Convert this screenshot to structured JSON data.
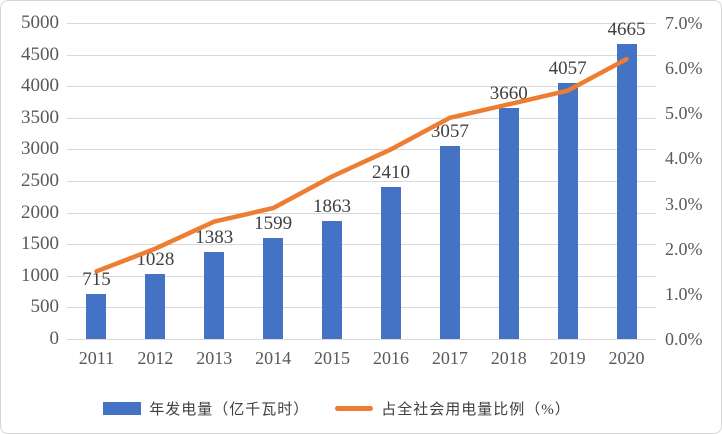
{
  "chart_data": {
    "type": "combo-bar-line",
    "title": "",
    "categories": [
      "2011",
      "2012",
      "2013",
      "2014",
      "2015",
      "2016",
      "2017",
      "2018",
      "2019",
      "2020"
    ],
    "series": [
      {
        "name": "年发电量（亿千瓦时）",
        "type": "bar",
        "y_axis": "left",
        "color": "#4472C4",
        "values": [
          715,
          1028,
          1383,
          1599,
          1863,
          2410,
          3057,
          3660,
          4057,
          4665
        ],
        "data_labels": [
          715,
          1028,
          1383,
          1599,
          1863,
          2410,
          3057,
          3660,
          4057,
          4665
        ]
      },
      {
        "name": "占全社会用电量比例（%）",
        "type": "line",
        "y_axis": "right",
        "color": "#ED7D31",
        "values": [
          1.5,
          2.0,
          2.6,
          2.9,
          3.6,
          4.2,
          4.9,
          5.2,
          5.5,
          6.2
        ]
      }
    ],
    "left_axis": {
      "min": 0,
      "max": 5000,
      "step": 500,
      "tick_labels": [
        "0",
        "500",
        "1000",
        "1500",
        "2000",
        "2500",
        "3000",
        "3500",
        "4000",
        "4500",
        "5000"
      ]
    },
    "right_axis": {
      "min": 0,
      "max": 7,
      "step": 1,
      "tick_labels": [
        "0.0%",
        "1.0%",
        "2.0%",
        "3.0%",
        "4.0%",
        "5.0%",
        "6.0%",
        "7.0%"
      ]
    },
    "gridlines": true,
    "legend_position": "bottom",
    "colors": {
      "gridline": "#d9d9d9",
      "axis_text": "#595959",
      "label_text": "#404040"
    }
  }
}
